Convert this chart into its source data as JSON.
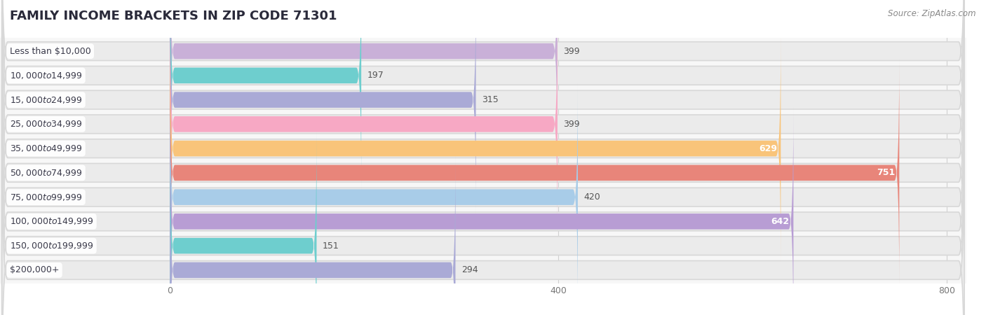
{
  "title": "FAMILY INCOME BRACKETS IN ZIP CODE 71301",
  "source": "Source: ZipAtlas.com",
  "categories": [
    "Less than $10,000",
    "$10,000 to $14,999",
    "$15,000 to $24,999",
    "$25,000 to $34,999",
    "$35,000 to $49,999",
    "$50,000 to $74,999",
    "$75,000 to $99,999",
    "$100,000 to $149,999",
    "$150,000 to $199,999",
    "$200,000+"
  ],
  "values": [
    399,
    197,
    315,
    399,
    629,
    751,
    420,
    642,
    151,
    294
  ],
  "bar_colors": [
    "#c9b0d8",
    "#6ecece",
    "#aaaad6",
    "#f7a8c4",
    "#f9c47a",
    "#e8857a",
    "#a8cce8",
    "#b89dd4",
    "#6ecece",
    "#aaaad6"
  ],
  "label_text_colors": [
    "#555555",
    "#555555",
    "#555555",
    "#555555",
    "#ffffff",
    "#ffffff",
    "#555555",
    "#ffffff",
    "#555555",
    "#555555"
  ],
  "data_min": 0,
  "data_max": 800,
  "xticks": [
    0,
    400,
    800
  ],
  "x_label_end": -30,
  "background_color": "#f7f7f7",
  "row_bg_color": "#ebebeb",
  "title_bg_color": "#ffffff",
  "title_fontsize": 13,
  "label_fontsize": 9,
  "value_fontsize": 9,
  "bar_height": 0.65
}
